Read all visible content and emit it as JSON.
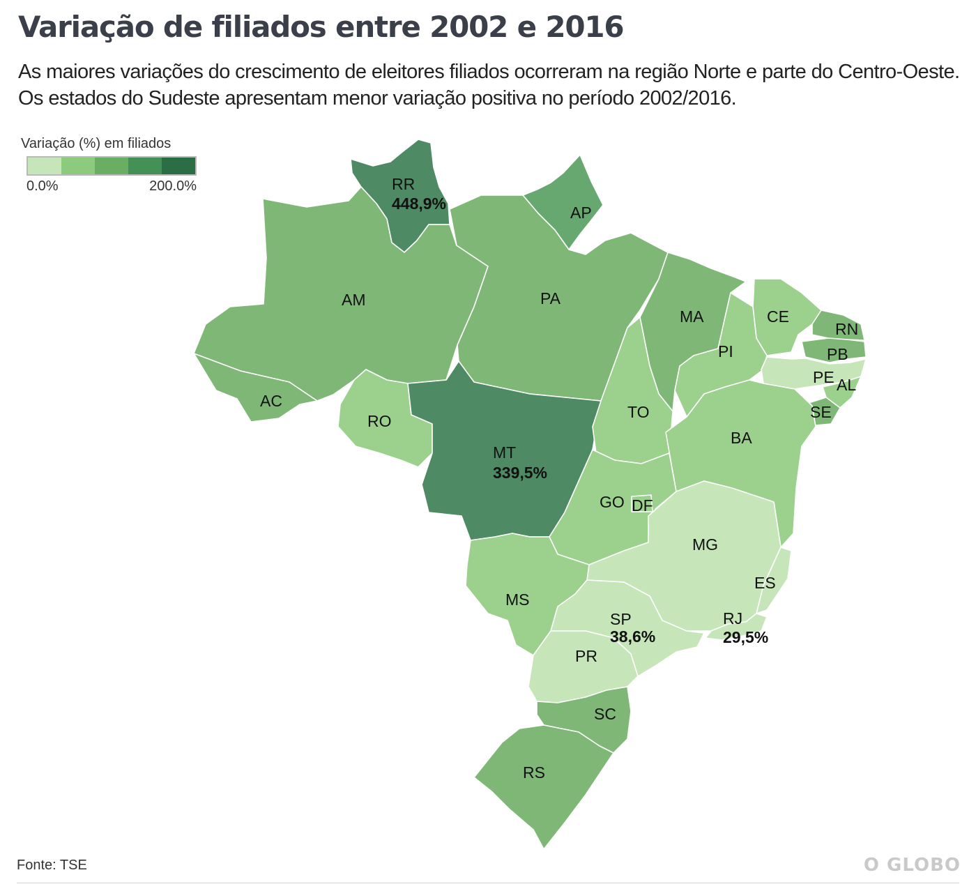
{
  "title": "Variação de filiados entre 2002 e 2016",
  "subtitle": "As maiores variações do crescimento de eleitores filiados ocorreram na região Norte e parte do Centro-Oeste. Os estados do Sudeste apresentam menor variação positiva no período 2002/2016.",
  "legend": {
    "title": "Variação (%) em filiados",
    "min_label": "0.0%",
    "max_label": "200.0%",
    "colors": [
      "#c6e5b9",
      "#8ccb7e",
      "#69ae63",
      "#439155",
      "#2b6e45"
    ]
  },
  "map": {
    "states": [
      {
        "abbr": "RR",
        "value_label": "448,9%",
        "fill": "#4e8a63"
      },
      {
        "abbr": "AP",
        "value_label": "",
        "fill": "#66a870"
      },
      {
        "abbr": "AM",
        "value_label": "",
        "fill": "#7fb777"
      },
      {
        "abbr": "PA",
        "value_label": "",
        "fill": "#7fb777"
      },
      {
        "abbr": "MA",
        "value_label": "",
        "fill": "#7fb777"
      },
      {
        "abbr": "CE",
        "value_label": "",
        "fill": "#9bd08d"
      },
      {
        "abbr": "RN",
        "value_label": "",
        "fill": "#7fb777"
      },
      {
        "abbr": "PB",
        "value_label": "",
        "fill": "#7fb777"
      },
      {
        "abbr": "PI",
        "value_label": "",
        "fill": "#9bd08d"
      },
      {
        "abbr": "PE",
        "value_label": "",
        "fill": "#c6e5b9"
      },
      {
        "abbr": "AL",
        "value_label": "",
        "fill": "#9bd08d"
      },
      {
        "abbr": "SE",
        "value_label": "",
        "fill": "#7fb777"
      },
      {
        "abbr": "AC",
        "value_label": "",
        "fill": "#7fb777"
      },
      {
        "abbr": "RO",
        "value_label": "",
        "fill": "#9bd08d"
      },
      {
        "abbr": "MT",
        "value_label": "339,5%",
        "fill": "#4e8a63"
      },
      {
        "abbr": "TO",
        "value_label": "",
        "fill": "#9bd08d"
      },
      {
        "abbr": "BA",
        "value_label": "",
        "fill": "#9bd08d"
      },
      {
        "abbr": "GO",
        "value_label": "",
        "fill": "#9bd08d"
      },
      {
        "abbr": "DF",
        "value_label": "",
        "fill": "#9bd08d"
      },
      {
        "abbr": "MG",
        "value_label": "",
        "fill": "#c6e5b9"
      },
      {
        "abbr": "ES",
        "value_label": "",
        "fill": "#c6e5b9"
      },
      {
        "abbr": "MS",
        "value_label": "",
        "fill": "#9bd08d"
      },
      {
        "abbr": "SP",
        "value_label": "38,6%",
        "fill": "#c6e5b9"
      },
      {
        "abbr": "RJ",
        "value_label": "29,5%",
        "fill": "#c6e5b9"
      },
      {
        "abbr": "PR",
        "value_label": "",
        "fill": "#c6e5b9"
      },
      {
        "abbr": "SC",
        "value_label": "",
        "fill": "#7fb777"
      },
      {
        "abbr": "RS",
        "value_label": "",
        "fill": "#7fb777"
      }
    ]
  },
  "source": "Fonte: TSE",
  "logo_text": "O GLOBO"
}
